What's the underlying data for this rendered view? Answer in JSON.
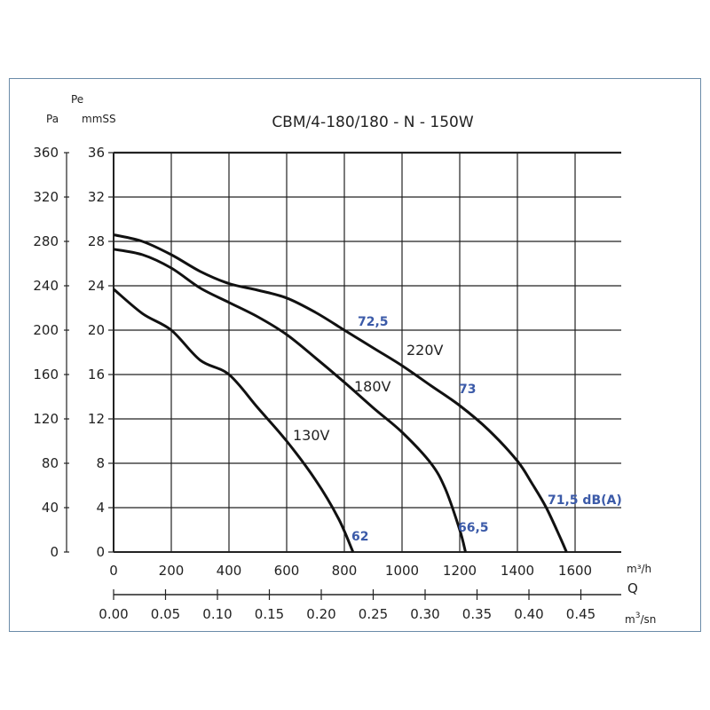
{
  "chart_data": {
    "type": "line",
    "title": "CBM/4-180/180 - N - 150W",
    "y_units": {
      "pa": "Pa",
      "pe": "Pe",
      "mmss": "mmSS"
    },
    "x_units": {
      "m3h": "m³/h",
      "q": "Q",
      "m3sn_base": "m",
      "m3sn_exp": "3",
      "m3sn_tail": "/sn"
    },
    "xlim": [
      0,
      1760
    ],
    "ylim": [
      0,
      360
    ],
    "x_ticks": [
      "0",
      "200",
      "400",
      "600",
      "800",
      "1000",
      "1200",
      "1400",
      "1600"
    ],
    "x2_ticks": [
      "0.00",
      "0.05",
      "0.10",
      "0.15",
      "0.20",
      "0.25",
      "0.30",
      "0.35",
      "0.40",
      "0.45"
    ],
    "y_ticks_pa": [
      "0",
      "40",
      "80",
      "120",
      "160",
      "200",
      "240",
      "280",
      "320",
      "360"
    ],
    "y_ticks_mmss": [
      "0",
      "4",
      "8",
      "12",
      "16",
      "20",
      "24",
      "28",
      "32",
      "36"
    ],
    "series": [
      {
        "name": "220V",
        "x": [
          0,
          100,
          200,
          300,
          400,
          500,
          600,
          700,
          800,
          900,
          1000,
          1100,
          1200,
          1300,
          1400,
          1450,
          1500,
          1550,
          1570
        ],
        "y": [
          286,
          280,
          268,
          253,
          242,
          236,
          229,
          216,
          200,
          184,
          168,
          150,
          132,
          110,
          82,
          62,
          40,
          12,
          0
        ]
      },
      {
        "name": "180V",
        "x": [
          0,
          100,
          200,
          300,
          400,
          500,
          600,
          700,
          800,
          900,
          1000,
          1100,
          1150,
          1200,
          1220
        ],
        "y": [
          273,
          268,
          256,
          238,
          225,
          212,
          196,
          175,
          153,
          130,
          108,
          80,
          57,
          20,
          0
        ]
      },
      {
        "name": "130V",
        "x": [
          0,
          100,
          200,
          300,
          400,
          500,
          600,
          700,
          780,
          830
        ],
        "y": [
          237,
          215,
          200,
          173,
          160,
          130,
          100,
          65,
          30,
          0
        ]
      }
    ],
    "curve_labels": [
      "220V",
      "180V",
      "130V"
    ],
    "db_labels": [
      "72,5",
      "73",
      "71,5 dB(A)",
      "62",
      "66,5"
    ]
  }
}
